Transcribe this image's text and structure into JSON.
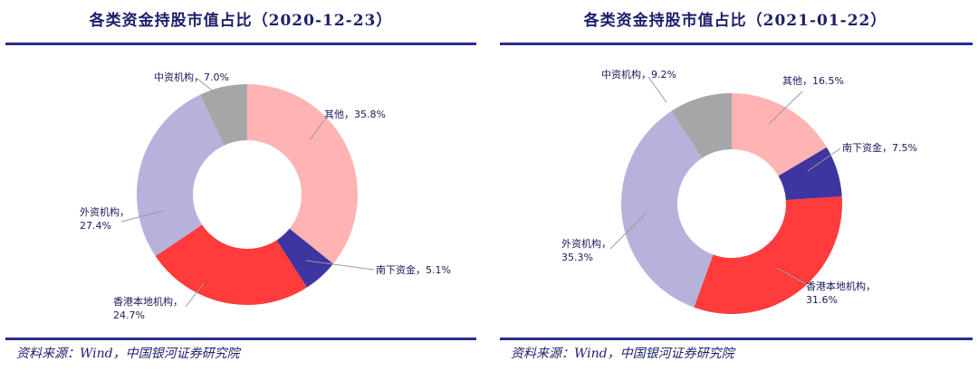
{
  "charts": [
    {
      "title": "各类资金持股市值占比（2020-12-23）",
      "source": "资料来源：Wind，中国银河证券研究院"
    },
    {
      "title": "各类资金持股市值占比（2021-01-22）",
      "source": "资料来源：Wind，中国银河证券研究院"
    }
  ],
  "chart_data": [
    {
      "type": "pie",
      "title": "各类资金持股市值占比（2020-12-23）",
      "donut": true,
      "slices": [
        {
          "name": "其他",
          "value": 35.8,
          "label": "其他，35.8%",
          "color": "#ffb3b3"
        },
        {
          "name": "南下资金",
          "value": 5.1,
          "label": "南下资金，5.1%",
          "color": "#3d35a0"
        },
        {
          "name": "香港本地机构",
          "value": 24.7,
          "label": [
            "香港本地机构，",
            "24.7%"
          ],
          "color": "#ff3b3b"
        },
        {
          "name": "外资机构",
          "value": 27.4,
          "label": [
            "外资机构，",
            "27.4%"
          ],
          "color": "#b7b2dc"
        },
        {
          "name": "中资机构",
          "value": 7.0,
          "label": "中资机构，7.0%",
          "color": "#a6a6a6"
        }
      ]
    },
    {
      "type": "pie",
      "title": "各类资金持股市值占比（2021-01-22）",
      "donut": true,
      "slices": [
        {
          "name": "其他",
          "value": 16.5,
          "label": "其他，16.5%",
          "color": "#ffb3b3"
        },
        {
          "name": "南下资金",
          "value": 7.5,
          "label": "南下资金，7.5%",
          "color": "#3d35a0"
        },
        {
          "name": "香港本地机构",
          "value": 31.6,
          "label": [
            "香港本地机构，",
            "31.6%"
          ],
          "color": "#ff3b3b"
        },
        {
          "name": "外资机构",
          "value": 35.3,
          "label": [
            "外资机构，",
            "35.3%"
          ],
          "color": "#b7b2dc"
        },
        {
          "name": "中资机构",
          "value": 9.2,
          "label": "中资机构，9.2%",
          "color": "#a6a6a6"
        }
      ]
    }
  ]
}
